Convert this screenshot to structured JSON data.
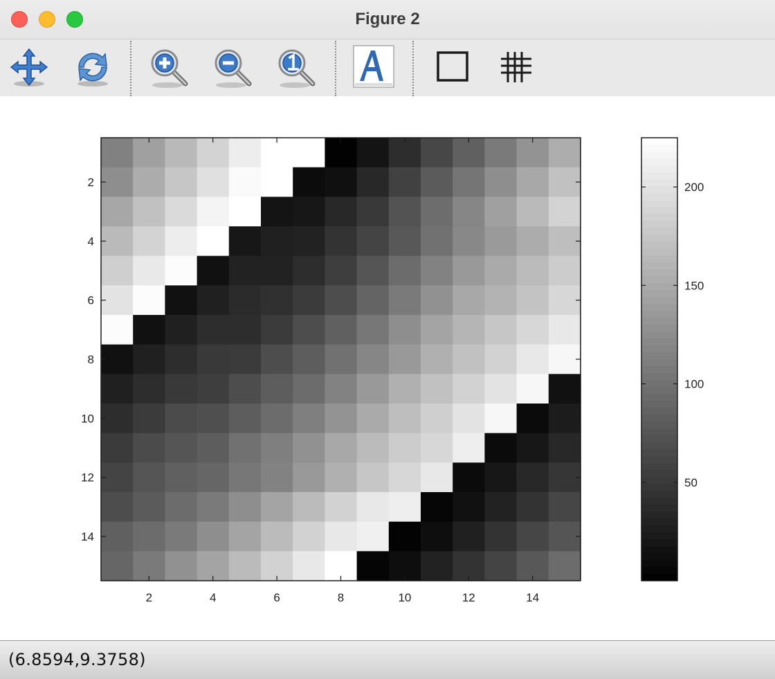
{
  "window": {
    "title": "Figure 2"
  },
  "toolbar": {
    "tools": [
      {
        "name": "pan-icon"
      },
      {
        "name": "rotate-icon"
      },
      {
        "name": "zoom-in-icon"
      },
      {
        "name": "zoom-out-icon"
      },
      {
        "name": "zoom-reset-icon"
      },
      {
        "name": "text-insert-icon"
      },
      {
        "name": "box-toggle-icon"
      },
      {
        "name": "grid-toggle-icon"
      }
    ]
  },
  "status": {
    "coords": "(6.8594,9.3758)"
  },
  "chart_data": {
    "type": "heatmap",
    "colormap": "gray",
    "matrix": [
      [
        114,
        141,
        163,
        186,
        209,
        232,
        225,
        2,
        18,
        40,
        63,
        85,
        108,
        130,
        153
      ],
      [
        125,
        152,
        175,
        198,
        221,
        225,
        11,
        14,
        35,
        57,
        80,
        103,
        125,
        148,
        170
      ],
      [
        147,
        170,
        192,
        215,
        225,
        18,
        20,
        35,
        50,
        73,
        96,
        118,
        141,
        164,
        186
      ],
      [
        164,
        186,
        209,
        225,
        20,
        28,
        30,
        45,
        60,
        78,
        100,
        120,
        136,
        152,
        168
      ],
      [
        183,
        206,
        222,
        15,
        30,
        30,
        40,
        55,
        75,
        95,
        115,
        135,
        150,
        165,
        180
      ],
      [
        200,
        222,
        15,
        28,
        38,
        42,
        52,
        68,
        88,
        108,
        128,
        148,
        158,
        172,
        190
      ],
      [
        222,
        15,
        28,
        40,
        40,
        52,
        68,
        85,
        105,
        125,
        145,
        160,
        175,
        190,
        205
      ],
      [
        15,
        28,
        40,
        50,
        52,
        68,
        82,
        100,
        118,
        135,
        155,
        170,
        185,
        205,
        218
      ],
      [
        28,
        40,
        50,
        55,
        68,
        82,
        95,
        115,
        135,
        155,
        170,
        185,
        200,
        218,
        15
      ],
      [
        40,
        52,
        66,
        70,
        82,
        95,
        112,
        130,
        150,
        168,
        183,
        200,
        218,
        10,
        25
      ],
      [
        52,
        66,
        75,
        82,
        100,
        112,
        128,
        148,
        165,
        180,
        190,
        210,
        10,
        20,
        35
      ],
      [
        60,
        75,
        85,
        90,
        105,
        115,
        135,
        155,
        175,
        190,
        205,
        10,
        20,
        35,
        48
      ],
      [
        68,
        80,
        95,
        108,
        125,
        145,
        165,
        185,
        205,
        210,
        5,
        15,
        30,
        45,
        62
      ],
      [
        85,
        95,
        108,
        125,
        145,
        165,
        185,
        205,
        212,
        3,
        12,
        28,
        45,
        62,
        75
      ],
      [
        90,
        108,
        128,
        145,
        165,
        185,
        205,
        225,
        4,
        12,
        30,
        45,
        60,
        78,
        95
      ]
    ],
    "clim": [
      0,
      225
    ],
    "xlim": [
      0.5,
      15.5
    ],
    "ylim": [
      0.5,
      15.5
    ],
    "y_direction": "reverse",
    "xticks": [
      2,
      4,
      6,
      8,
      10,
      12,
      14
    ],
    "yticks": [
      2,
      4,
      6,
      8,
      10,
      12,
      14
    ],
    "colorbar": {
      "ticks": [
        50,
        100,
        150,
        200
      ],
      "location": "right"
    }
  }
}
